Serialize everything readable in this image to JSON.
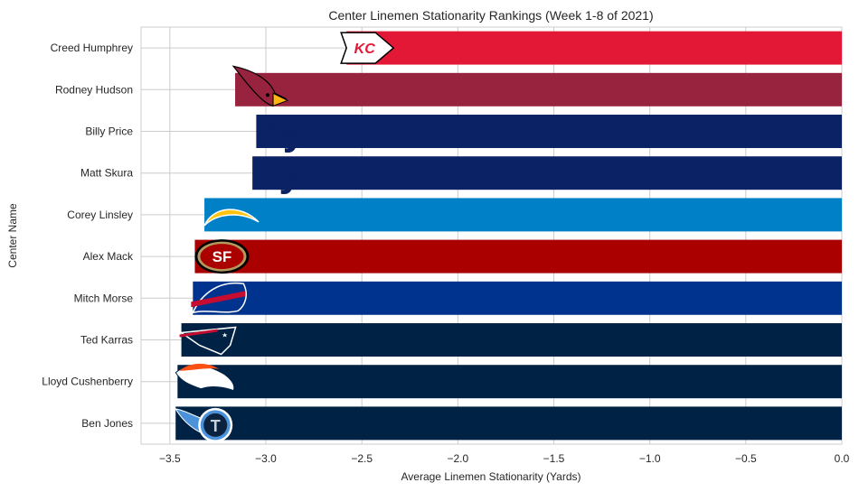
{
  "chart_data": {
    "type": "bar",
    "orientation": "horizontal",
    "title": "Center Linemen Stationarity Rankings (Week 1-8 of 2021)",
    "xlabel": "Average Linemen Stationarity (Yards)",
    "ylabel": "Center Name",
    "xlim": [
      -3.65,
      0.0
    ],
    "xticks": [
      -3.5,
      -3.0,
      -2.5,
      -2.0,
      -1.5,
      -1.0,
      -0.5,
      0.0
    ],
    "xtick_labels": [
      "−3.5",
      "−3.0",
      "−2.5",
      "−2.0",
      "−1.5",
      "−1.0",
      "−0.5",
      "0.0"
    ],
    "grid": true,
    "categories": [
      "Creed Humphrey",
      "Rodney Hudson",
      "Billy Price",
      "Matt Skura",
      "Corey Linsley",
      "Alex Mack",
      "Mitch Morse",
      "Ted Karras",
      "Lloyd Cushenberry",
      "Ben Jones"
    ],
    "values": [
      -2.58,
      -3.16,
      -3.05,
      -3.07,
      -3.32,
      -3.37,
      -3.38,
      -3.44,
      -3.46,
      -3.47
    ],
    "bar_colors": [
      "#E31837",
      "#97233F",
      "#0B2265",
      "#0B2265",
      "#0080C6",
      "#AA0000",
      "#00338D",
      "#002244",
      "#002244",
      "#002244"
    ],
    "team_logos": [
      "chiefs-logo",
      "cardinals-logo",
      "giants-logo",
      "giants-logo",
      "chargers-logo",
      "49ers-logo",
      "bills-logo",
      "patriots-logo",
      "broncos-logo",
      "titans-logo"
    ]
  }
}
